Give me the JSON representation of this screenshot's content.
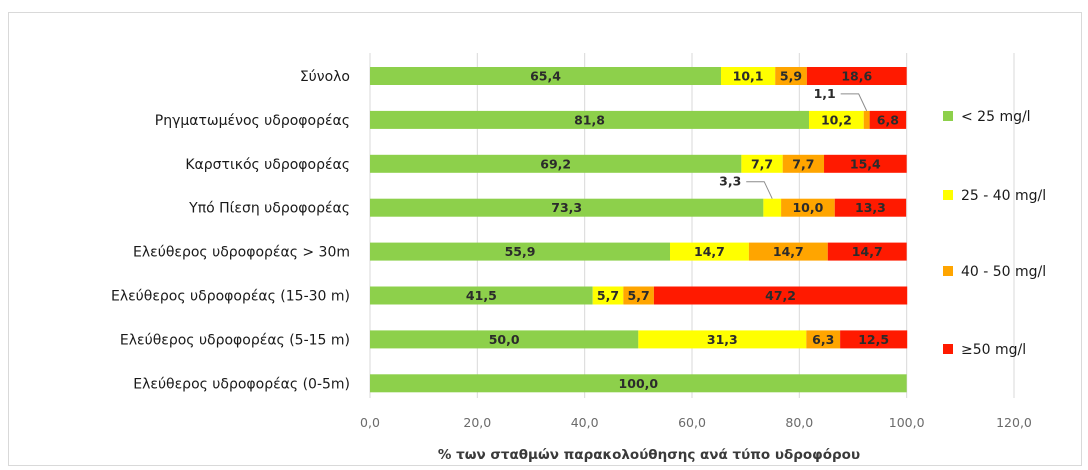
{
  "chart_data": {
    "type": "bar",
    "orientation": "horizontal",
    "stacked": true,
    "categories": [
      "Σύνολο",
      "Ρηγματωμένος υδροφορέας",
      "Καρστικός υδροφορέας",
      "Υπό Πίεση υδροφορέας",
      "Ελεύθερος υδροφορέας > 30m",
      "Ελεύθερος υδροφορέας (15-30 m)",
      "Ελεύθερος υδροφορέας (5-15 m)",
      "Ελεύθερος υδροφορέας (0-5m)"
    ],
    "series": [
      {
        "name": "< 25 mg/l",
        "color": "#8dd04b",
        "values": [
          65.4,
          81.8,
          69.2,
          73.3,
          55.9,
          41.5,
          50.0,
          100.0
        ],
        "labels": [
          "65,4",
          "81,8",
          "69,2",
          "73,3",
          "55,9",
          "41,5",
          "50,0",
          "100,0"
        ]
      },
      {
        "name": "25 - 40 mg/l",
        "color": "#ffff00",
        "values": [
          10.1,
          10.2,
          7.7,
          3.3,
          14.7,
          5.7,
          31.3,
          0
        ],
        "labels": [
          "10,1",
          "10,2",
          "7,7",
          "3,3",
          "14,7",
          "5,7",
          "31,3",
          ""
        ]
      },
      {
        "name": "40 - 50 mg/l",
        "color": "#ffa500",
        "values": [
          5.9,
          1.1,
          7.7,
          10.0,
          14.7,
          5.7,
          6.3,
          0
        ],
        "labels": [
          "5,9",
          "1,1",
          "7,7",
          "10,0",
          "14,7",
          "5,7",
          "6,3",
          ""
        ]
      },
      {
        "name": "≥50 mg/l",
        "color": "#ff1a00",
        "values": [
          18.6,
          6.8,
          15.4,
          13.3,
          14.7,
          47.2,
          12.5,
          0
        ],
        "labels": [
          "18,6",
          "6,8",
          "15,4",
          "13,3",
          "14,7",
          "47,2",
          "12,5",
          ""
        ]
      }
    ],
    "callouts": [
      {
        "category_index": 1,
        "series_index": 2,
        "text": "1,1"
      },
      {
        "category_index": 3,
        "series_index": 1,
        "text": "3,3"
      }
    ],
    "xlim": [
      0,
      120
    ],
    "x_ticks": [
      0,
      20,
      40,
      60,
      80,
      100,
      120
    ],
    "x_tick_labels": [
      "0,0",
      "20,0",
      "40,0",
      "60,0",
      "80,0",
      "100,0",
      "120,0"
    ],
    "xlabel": "% των σταθμών παρακολούθησης ανά τύπο υδροφόρου",
    "ylabel": "",
    "title": "",
    "grid": "vertical",
    "legend_position": "right"
  }
}
